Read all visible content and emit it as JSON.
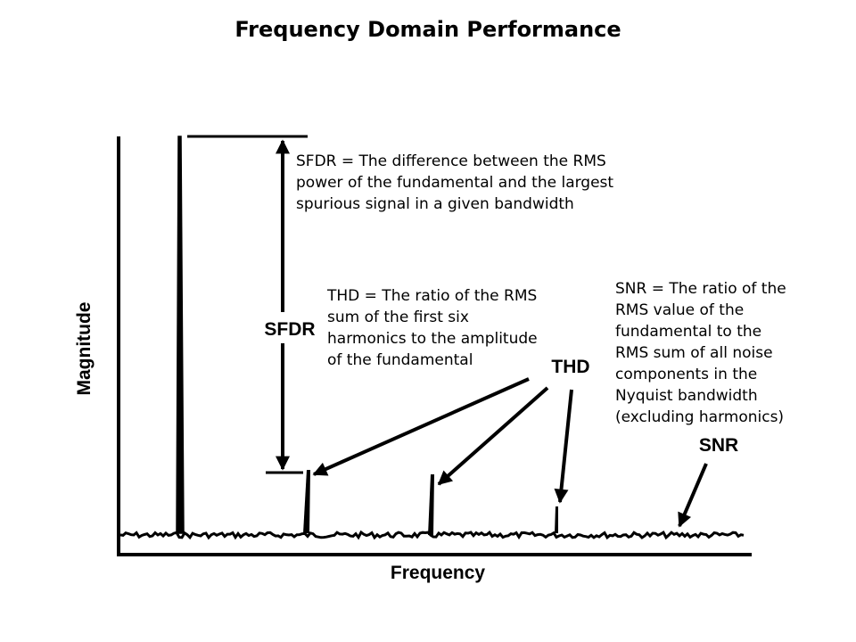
{
  "title": "Frequency Domain Performance",
  "axes": {
    "ylabel": "Magnitude",
    "xlabel": "Frequency"
  },
  "labels": {
    "sfdr": "SFDR",
    "thd": "THD",
    "snr": "SNR"
  },
  "definitions": {
    "sfdr": [
      "SFDR = The difference between the RMS",
      "power of the fundamental and the largest",
      "spurious signal in a given bandwidth"
    ],
    "thd": [
      "THD = The ratio of the RMS",
      "sum of the first six",
      "harmonics to the amplitude",
      "of the fundamental"
    ],
    "snr": [
      "SNR = The ratio of the",
      "RMS value of the",
      "fundamental to the",
      "RMS sum of all noise",
      "components in the",
      "Nyquist bandwidth",
      "(excluding harmonics)"
    ]
  },
  "colors": {
    "ink": "#000000",
    "background": "#ffffff"
  }
}
